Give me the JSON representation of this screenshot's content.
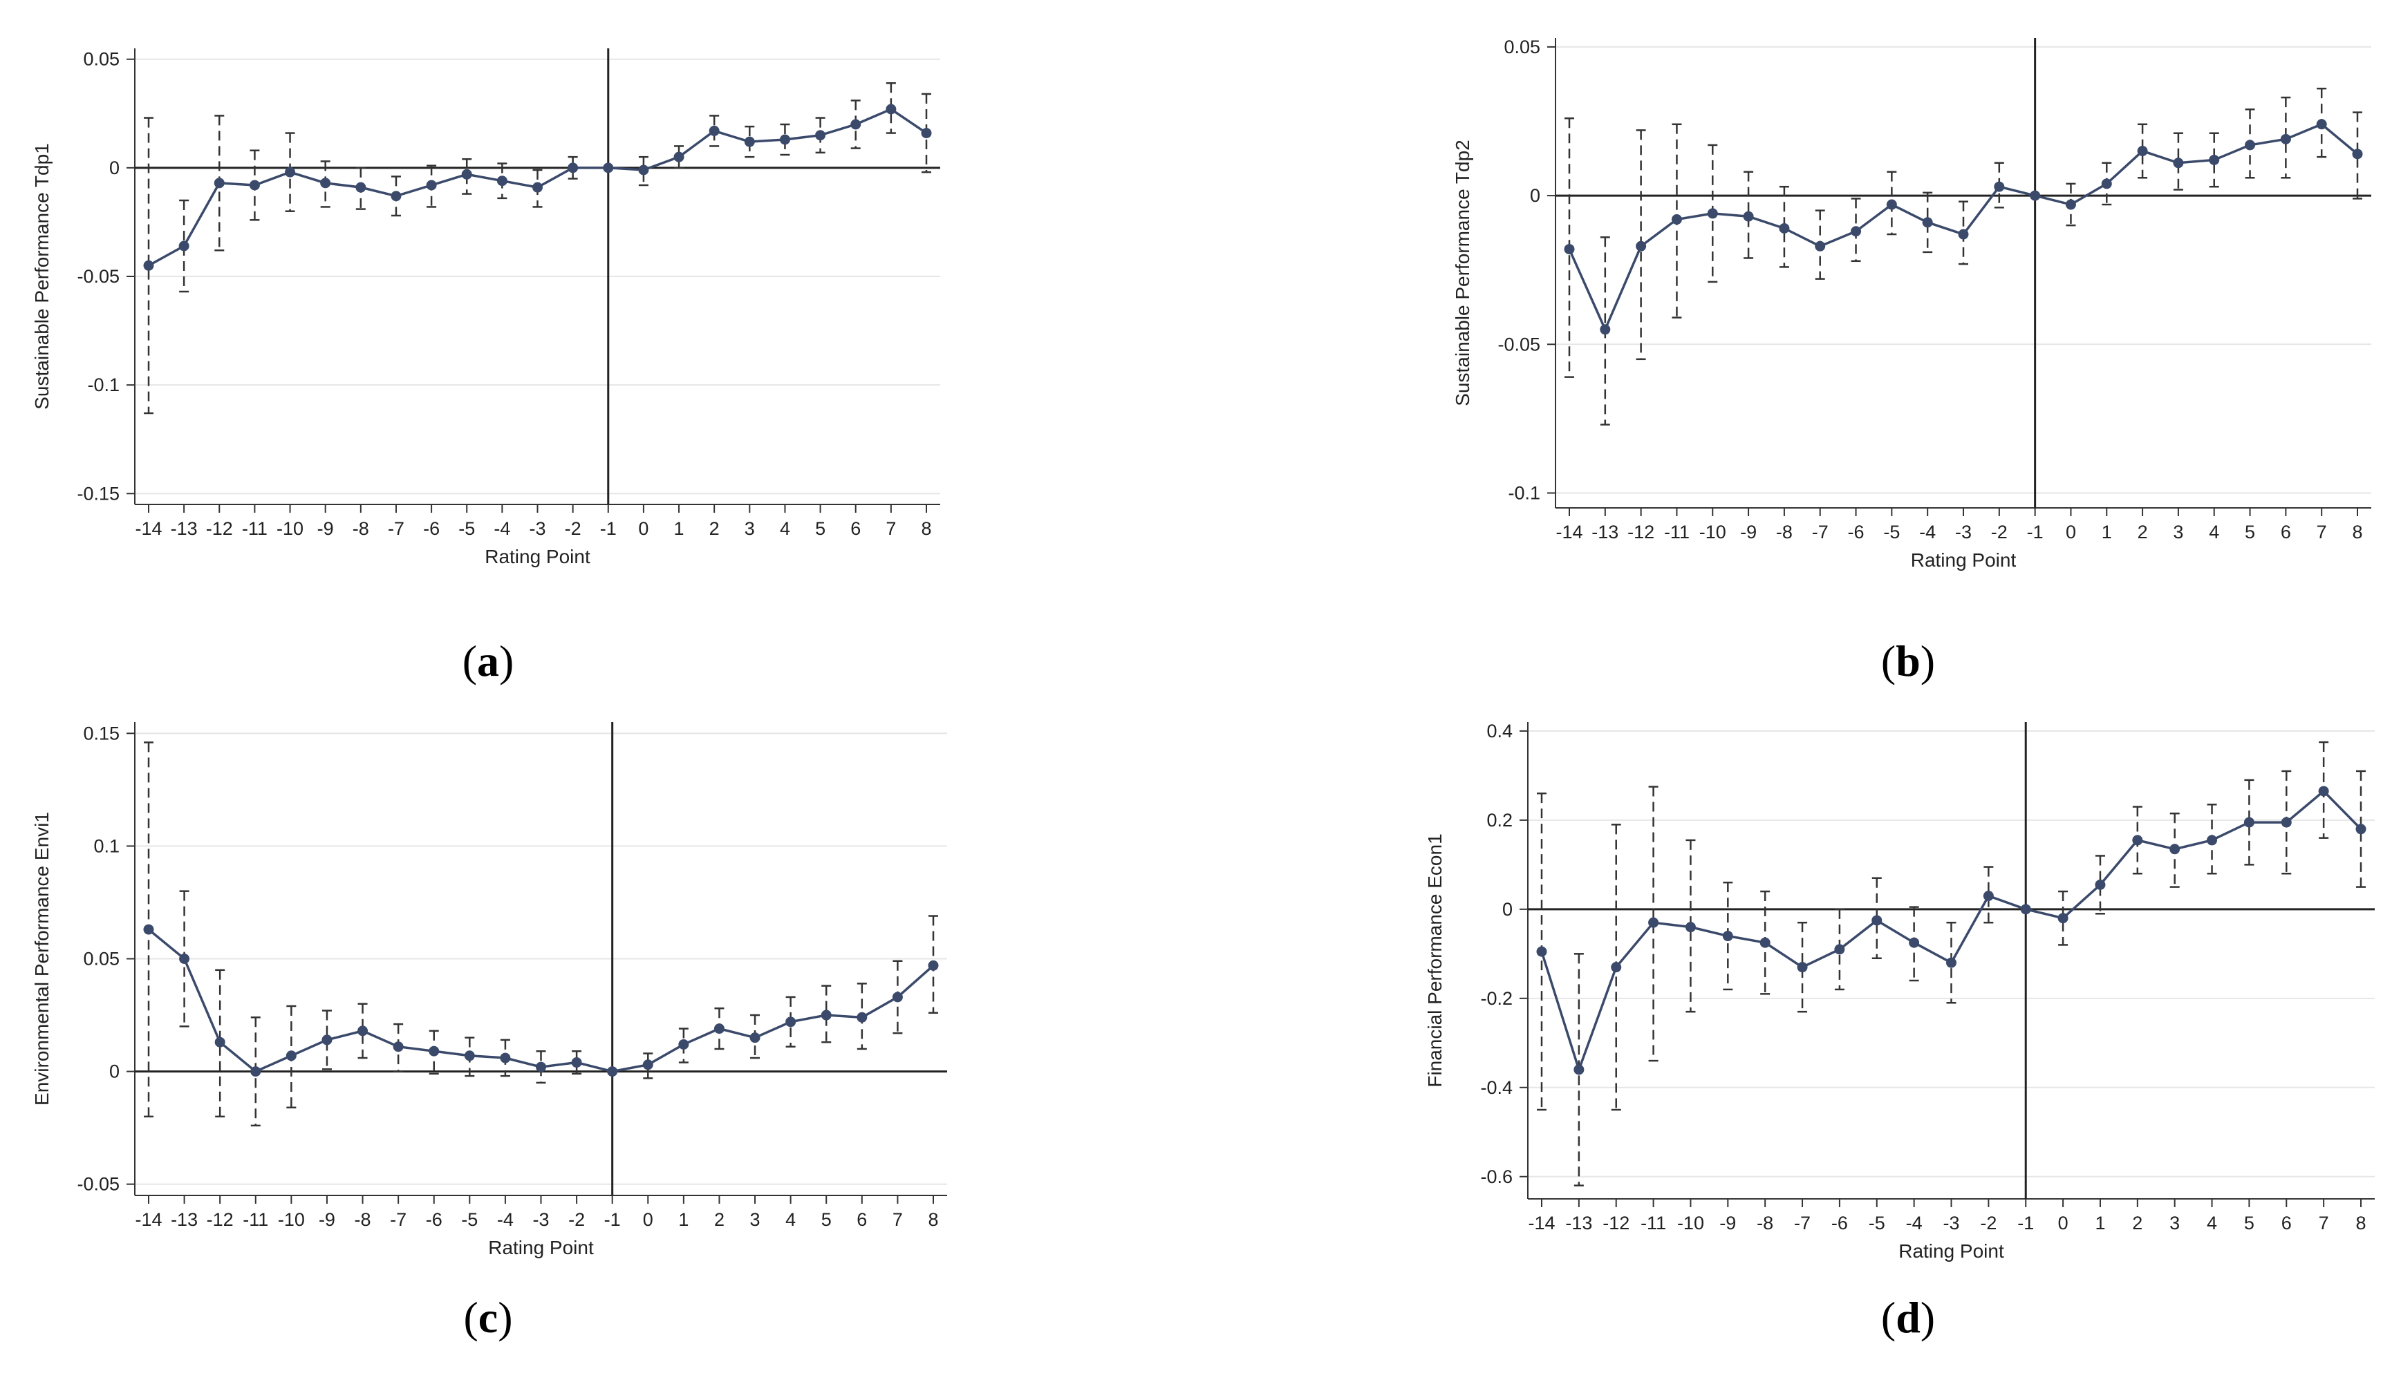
{
  "figure": {
    "panel_labels": [
      {
        "open": "(",
        "letter": "a",
        "close": ")"
      },
      {
        "open": "(",
        "letter": "b",
        "close": ")"
      },
      {
        "open": "(",
        "letter": "c",
        "close": ")"
      },
      {
        "open": "(",
        "letter": "d",
        "close": ")"
      }
    ]
  },
  "colors": {
    "series": "#3b4a6b",
    "ci": "#333333",
    "axis": "#333333",
    "grid": "#e6e6e6",
    "zero_line": "#222222"
  },
  "chart_data": [
    {
      "type": "line",
      "id": "a",
      "xlabel": "Rating Point",
      "ylabel": "Sustainable Performance Tdp1",
      "categories": [
        "-14",
        "-13",
        "-12",
        "-11",
        "-10",
        "-9",
        "-8",
        "-7",
        "-6",
        "-5",
        "-4",
        "-3",
        "-2",
        "-1",
        "0",
        "1",
        "2",
        "3",
        "4",
        "5",
        "6",
        "7",
        "8"
      ],
      "ylim": [
        -0.155,
        0.055
      ],
      "yticks": [
        0.05,
        0,
        -0.05,
        -0.1,
        -0.15
      ],
      "ytick_labels": [
        "0.05",
        "0",
        "-0.05",
        "-0.1",
        "-0.15"
      ],
      "grid": true,
      "reference_x": "-1",
      "series": [
        {
          "name": "Tdp1",
          "values": [
            -0.045,
            -0.036,
            -0.007,
            -0.008,
            -0.002,
            -0.007,
            -0.009,
            -0.013,
            -0.008,
            -0.003,
            -0.006,
            -0.009,
            0,
            0,
            -0.001,
            0.005,
            0.017,
            0.012,
            0.013,
            0.015,
            0.02,
            0.027,
            0.016
          ],
          "ci_lower": [
            -0.113,
            -0.057,
            -0.038,
            -0.024,
            -0.02,
            -0.018,
            -0.019,
            -0.022,
            -0.018,
            -0.012,
            -0.014,
            -0.018,
            -0.005,
            0,
            -0.008,
            0,
            0.01,
            0.005,
            0.006,
            0.007,
            0.009,
            0.016,
            -0.002
          ],
          "ci_upper": [
            0.023,
            -0.015,
            0.024,
            0.008,
            0.016,
            0.003,
            0,
            -0.004,
            0.001,
            0.004,
            0.002,
            -0.001,
            0.005,
            0,
            0.005,
            0.01,
            0.024,
            0.019,
            0.02,
            0.023,
            0.031,
            0.039,
            0.034
          ]
        }
      ]
    },
    {
      "type": "line",
      "id": "b",
      "xlabel": "Rating Point",
      "ylabel": "Sustainable Performance Tdp2",
      "categories": [
        "-14",
        "-13",
        "-12",
        "-11",
        "-10",
        "-9",
        "-8",
        "-7",
        "-6",
        "-5",
        "-4",
        "-3",
        "-2",
        "-1",
        "0",
        "1",
        "2",
        "3",
        "4",
        "5",
        "6",
        "7",
        "8"
      ],
      "ylim": [
        -0.105,
        0.053
      ],
      "yticks": [
        0.05,
        0,
        -0.05,
        -0.1
      ],
      "ytick_labels": [
        "0.05",
        "0",
        "-0.05",
        "-0.1"
      ],
      "grid": true,
      "reference_x": "-1",
      "series": [
        {
          "name": "Tdp2",
          "values": [
            -0.018,
            -0.045,
            -0.017,
            -0.008,
            -0.006,
            -0.007,
            -0.011,
            -0.017,
            -0.012,
            -0.003,
            -0.009,
            -0.013,
            0.003,
            0,
            -0.003,
            0.004,
            0.015,
            0.011,
            0.012,
            0.017,
            0.019,
            0.024,
            0.014
          ],
          "ci_lower": [
            -0.061,
            -0.077,
            -0.055,
            -0.041,
            -0.029,
            -0.021,
            -0.024,
            -0.028,
            -0.022,
            -0.013,
            -0.019,
            -0.023,
            -0.004,
            0,
            -0.01,
            -0.003,
            0.006,
            0.002,
            0.003,
            0.006,
            0.006,
            0.013,
            -0.001
          ],
          "ci_upper": [
            0.026,
            -0.014,
            0.022,
            0.024,
            0.017,
            0.008,
            0.003,
            -0.005,
            -0.001,
            0.008,
            0.001,
            -0.002,
            0.011,
            0,
            0.004,
            0.011,
            0.024,
            0.021,
            0.021,
            0.029,
            0.033,
            0.036,
            0.028
          ]
        }
      ]
    },
    {
      "type": "line",
      "id": "c",
      "xlabel": "Rating Point",
      "ylabel": "Environmental Performance Envi1",
      "categories": [
        "-14",
        "-13",
        "-12",
        "-11",
        "-10",
        "-9",
        "-8",
        "-7",
        "-6",
        "-5",
        "-4",
        "-3",
        "-2",
        "-1",
        "0",
        "1",
        "2",
        "3",
        "4",
        "5",
        "6",
        "7",
        "8"
      ],
      "ylim": [
        -0.055,
        0.155
      ],
      "yticks": [
        0.15,
        0.1,
        0.05,
        0,
        -0.05
      ],
      "ytick_labels": [
        "0.15",
        "0.1",
        "0.05",
        "0",
        "-0.05"
      ],
      "grid": true,
      "reference_x": "-1",
      "series": [
        {
          "name": "Envi1",
          "values": [
            0.063,
            0.05,
            0.013,
            0,
            0.007,
            0.014,
            0.018,
            0.011,
            0.009,
            0.007,
            0.006,
            0.002,
            0.004,
            0,
            0.003,
            0.012,
            0.019,
            0.015,
            0.022,
            0.025,
            0.024,
            0.033,
            0.047
          ],
          "ci_lower": [
            -0.02,
            0.02,
            -0.02,
            -0.024,
            -0.016,
            0.001,
            0.006,
            0,
            -0.001,
            -0.002,
            -0.002,
            -0.005,
            -0.001,
            0,
            -0.003,
            0.004,
            0.01,
            0.006,
            0.011,
            0.013,
            0.01,
            0.017,
            0.026
          ],
          "ci_upper": [
            0.146,
            0.08,
            0.045,
            0.024,
            0.029,
            0.027,
            0.03,
            0.021,
            0.018,
            0.015,
            0.014,
            0.009,
            0.009,
            0,
            0.008,
            0.019,
            0.028,
            0.025,
            0.033,
            0.038,
            0.039,
            0.049,
            0.069
          ]
        }
      ]
    },
    {
      "type": "line",
      "id": "d",
      "xlabel": "Rating Point",
      "ylabel": "Financial Performance Econ1",
      "categories": [
        "-14",
        "-13",
        "-12",
        "-11",
        "-10",
        "-9",
        "-8",
        "-7",
        "-6",
        "-5",
        "-4",
        "-3",
        "-2",
        "-1",
        "0",
        "1",
        "2",
        "3",
        "4",
        "5",
        "6",
        "7",
        "8"
      ],
      "ylim": [
        -0.65,
        0.42
      ],
      "yticks": [
        0.4,
        0.2,
        0,
        -0.2,
        -0.4,
        -0.6
      ],
      "ytick_labels": [
        "0.4",
        "0.2",
        "0",
        "-0.2",
        "-0.4",
        "-0.6"
      ],
      "grid": true,
      "reference_x": "-1",
      "series": [
        {
          "name": "Econ1",
          "values": [
            -0.095,
            -0.36,
            -0.13,
            -0.03,
            -0.04,
            -0.06,
            -0.075,
            -0.13,
            -0.09,
            -0.025,
            -0.075,
            -0.12,
            0.03,
            0,
            -0.02,
            0.055,
            0.155,
            0.135,
            0.155,
            0.195,
            0.195,
            0.265,
            0.18
          ],
          "ci_lower": [
            -0.45,
            -0.62,
            -0.45,
            -0.34,
            -0.23,
            -0.18,
            -0.19,
            -0.23,
            -0.18,
            -0.11,
            -0.16,
            -0.21,
            -0.03,
            0,
            -0.08,
            -0.01,
            0.08,
            0.05,
            0.08,
            0.1,
            0.08,
            0.16,
            0.05
          ],
          "ci_upper": [
            0.26,
            -0.1,
            0.19,
            0.275,
            0.155,
            0.06,
            0.04,
            -0.03,
            0,
            0.07,
            0.005,
            -0.03,
            0.095,
            0,
            0.04,
            0.12,
            0.23,
            0.215,
            0.235,
            0.29,
            0.31,
            0.375,
            0.31
          ]
        }
      ]
    }
  ]
}
